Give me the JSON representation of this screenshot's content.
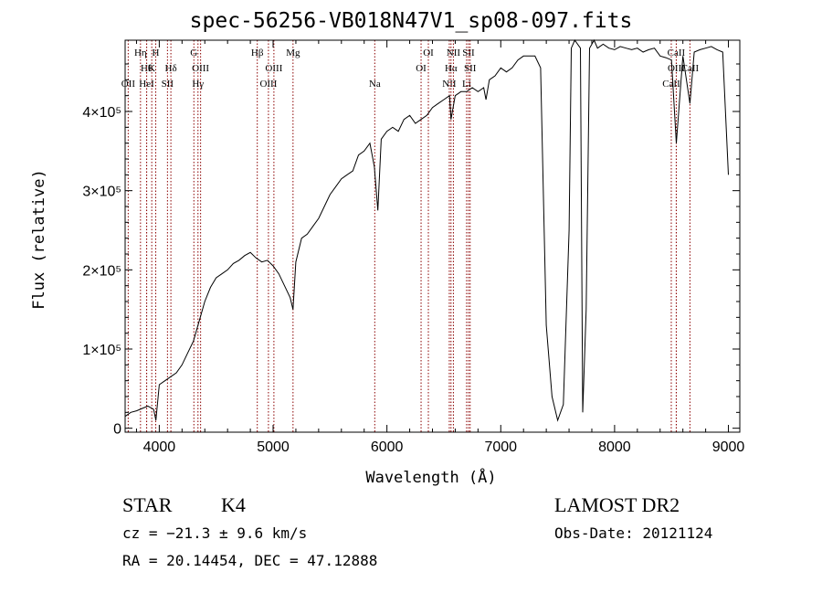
{
  "chart_data": {
    "type": "line",
    "title": "spec-56256-VB018N47V1_sp08-097.fits",
    "xlabel": "Wavelength (Å)",
    "ylabel": "Flux (relative)",
    "xlim": [
      3700,
      9100
    ],
    "ylim": [
      -5000,
      490000
    ],
    "xticks": [
      {
        "v": 4000,
        "label": "4000"
      },
      {
        "v": 5000,
        "label": "5000"
      },
      {
        "v": 6000,
        "label": "6000"
      },
      {
        "v": 7000,
        "label": "7000"
      },
      {
        "v": 8000,
        "label": "8000"
      },
      {
        "v": 9000,
        "label": "9000"
      }
    ],
    "yticks": [
      {
        "v": 0,
        "label": "0"
      },
      {
        "v": 100000,
        "label": "1×10⁵"
      },
      {
        "v": 200000,
        "label": "2×10⁵"
      },
      {
        "v": 300000,
        "label": "3×10⁵"
      },
      {
        "v": 400000,
        "label": "4×10⁵"
      }
    ],
    "grid": false,
    "line_color": "#000000",
    "marker_color": "#8b0000",
    "spectrum": {
      "x": [
        3700,
        3750,
        3800,
        3850,
        3900,
        3950,
        3970,
        4000,
        4050,
        4100,
        4150,
        4200,
        4250,
        4300,
        4350,
        4400,
        4450,
        4500,
        4550,
        4600,
        4650,
        4700,
        4750,
        4800,
        4850,
        4900,
        4950,
        5000,
        5050,
        5100,
        5150,
        5175,
        5200,
        5250,
        5300,
        5350,
        5400,
        5450,
        5500,
        5550,
        5600,
        5650,
        5700,
        5750,
        5800,
        5850,
        5890,
        5920,
        5950,
        6000,
        6050,
        6100,
        6150,
        6200,
        6250,
        6300,
        6350,
        6400,
        6450,
        6500,
        6550,
        6563,
        6600,
        6650,
        6700,
        6750,
        6800,
        6850,
        6870,
        6900,
        6950,
        7000,
        7050,
        7100,
        7150,
        7200,
        7250,
        7300,
        7350,
        7400,
        7450,
        7500,
        7550,
        7600,
        7620,
        7650,
        7700,
        7720,
        7750,
        7780,
        7820,
        7850,
        7900,
        7950,
        8000,
        8050,
        8100,
        8150,
        8200,
        8250,
        8300,
        8350,
        8400,
        8450,
        8500,
        8542,
        8600,
        8662,
        8700,
        8750,
        8800,
        8850,
        8900,
        8950,
        9000
      ],
      "y": [
        15000,
        20000,
        22000,
        25000,
        28000,
        24000,
        10000,
        55000,
        60000,
        65000,
        70000,
        80000,
        95000,
        110000,
        135000,
        160000,
        178000,
        190000,
        195000,
        200000,
        208000,
        212000,
        218000,
        222000,
        215000,
        210000,
        212000,
        205000,
        195000,
        180000,
        165000,
        150000,
        210000,
        240000,
        245000,
        255000,
        265000,
        280000,
        295000,
        305000,
        315000,
        320000,
        325000,
        345000,
        350000,
        360000,
        330000,
        275000,
        365000,
        375000,
        380000,
        375000,
        390000,
        395000,
        385000,
        390000,
        395000,
        405000,
        410000,
        415000,
        420000,
        390000,
        420000,
        425000,
        425000,
        430000,
        425000,
        430000,
        415000,
        440000,
        445000,
        455000,
        450000,
        455000,
        465000,
        470000,
        470000,
        470000,
        455000,
        130000,
        40000,
        10000,
        30000,
        250000,
        480000,
        490000,
        480000,
        20000,
        150000,
        480000,
        490000,
        480000,
        485000,
        480000,
        478000,
        482000,
        480000,
        478000,
        480000,
        475000,
        478000,
        480000,
        470000,
        468000,
        465000,
        360000,
        470000,
        410000,
        475000,
        478000,
        480000,
        482000,
        478000,
        475000,
        320000
      ]
    },
    "lines": [
      {
        "wl": 3727,
        "label": "OII",
        "row": 3
      },
      {
        "wl": 3835,
        "label": "Hη",
        "row": 1
      },
      {
        "wl": 3889,
        "label": "Hθ",
        "row": 2
      },
      {
        "wl": 3889,
        "label": "HeI",
        "row": 3
      },
      {
        "wl": 3934,
        "label": "K",
        "row": 2
      },
      {
        "wl": 3969,
        "label": "H",
        "row": 1
      },
      {
        "wl": 4072,
        "label": "SII",
        "row": 3
      },
      {
        "wl": 4102,
        "label": "Hδ",
        "row": 2
      },
      {
        "wl": 4304,
        "label": "G",
        "row": 1
      },
      {
        "wl": 4340,
        "label": "Hγ",
        "row": 3
      },
      {
        "wl": 4363,
        "label": "OIII",
        "row": 2
      },
      {
        "wl": 4861,
        "label": "Hβ",
        "row": 1
      },
      {
        "wl": 4959,
        "label": "OIII",
        "row": 3
      },
      {
        "wl": 5007,
        "label": "OIII",
        "row": 2
      },
      {
        "wl": 5175,
        "label": "Mg",
        "row": 1
      },
      {
        "wl": 5893,
        "label": "Na",
        "row": 3
      },
      {
        "wl": 6300,
        "label": "OI",
        "row": 2
      },
      {
        "wl": 6364,
        "label": "OI",
        "row": 1
      },
      {
        "wl": 6548,
        "label": "NII",
        "row": 3
      },
      {
        "wl": 6563,
        "label": "Hα",
        "row": 2
      },
      {
        "wl": 6584,
        "label": "NII",
        "row": 1
      },
      {
        "wl": 6700,
        "label": "Li",
        "row": 3
      },
      {
        "wl": 6717,
        "label": "SII",
        "row": 1
      },
      {
        "wl": 6731,
        "label": "SII",
        "row": 2
      },
      {
        "wl": 8498,
        "label": "CaII",
        "row": 3
      },
      {
        "wl": 8542,
        "label": "CaII",
        "row": 1
      },
      {
        "wl": 8542,
        "label": "OIII",
        "row": 2
      },
      {
        "wl": 8662,
        "label": "CaII",
        "row": 2
      }
    ]
  },
  "info": {
    "object_class": "STAR",
    "subclass": "K4",
    "redshift": "cz = −21.3 ± 9.6 km/s",
    "coords": "RA =  20.14454, DEC =  47.12888",
    "survey": "LAMOST DR2",
    "obs_date": "Obs-Date: 20121124"
  }
}
